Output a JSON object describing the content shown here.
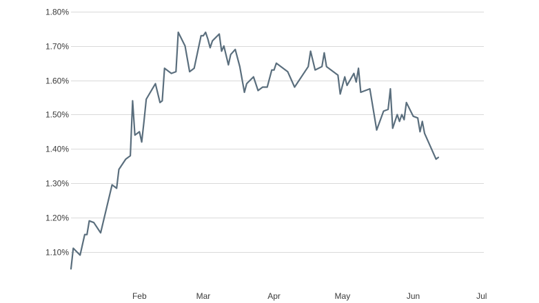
{
  "chart_data": {
    "type": "line",
    "title": "",
    "xlabel": "",
    "ylabel": "",
    "ylim": [
      1.03,
      1.8
    ],
    "y_ticks": [
      1.1,
      1.2,
      1.3,
      1.4,
      1.5,
      1.6,
      1.7,
      1.8
    ],
    "y_tick_labels": [
      "1.10%",
      "1.20%",
      "1.30%",
      "1.40%",
      "1.50%",
      "1.60%",
      "1.70%",
      "1.80%"
    ],
    "x_ticks": [
      {
        "label": "Feb",
        "x": 32
      },
      {
        "label": "Mar",
        "x": 60
      },
      {
        "label": "Apr",
        "x": 91
      },
      {
        "label": "May",
        "x": 121
      },
      {
        "label": "Jun",
        "x": 152
      },
      {
        "label": "Jul",
        "x": 182
      }
    ],
    "xlim": [
      2,
      183
    ],
    "x_unit": "day of year",
    "grid": "horizontal",
    "legend": "none",
    "colors": {
      "line": "#5a6e7d",
      "grid": "#d9d9d9",
      "text": "#3a3a3a"
    },
    "series": [
      {
        "values": [
          [
            2,
            1.05
          ],
          [
            3,
            1.11
          ],
          [
            6,
            1.09
          ],
          [
            8,
            1.15
          ],
          [
            9,
            1.15
          ],
          [
            10,
            1.19
          ],
          [
            12,
            1.185
          ],
          [
            15,
            1.155
          ],
          [
            20,
            1.295
          ],
          [
            22,
            1.285
          ],
          [
            23,
            1.34
          ],
          [
            26,
            1.37
          ],
          [
            28,
            1.38
          ],
          [
            29,
            1.54
          ],
          [
            30,
            1.44
          ],
          [
            32,
            1.45
          ],
          [
            33,
            1.42
          ],
          [
            34,
            1.48
          ],
          [
            35,
            1.545
          ],
          [
            39,
            1.59
          ],
          [
            41,
            1.535
          ],
          [
            42,
            1.54
          ],
          [
            43,
            1.635
          ],
          [
            46,
            1.62
          ],
          [
            48,
            1.625
          ],
          [
            49,
            1.74
          ],
          [
            52,
            1.7
          ],
          [
            54,
            1.625
          ],
          [
            56,
            1.635
          ],
          [
            59,
            1.73
          ],
          [
            60,
            1.73
          ],
          [
            61,
            1.74
          ],
          [
            62,
            1.72
          ],
          [
            63,
            1.695
          ],
          [
            64,
            1.715
          ],
          [
            67,
            1.735
          ],
          [
            68,
            1.685
          ],
          [
            69,
            1.7
          ],
          [
            71,
            1.645
          ],
          [
            72,
            1.675
          ],
          [
            74,
            1.69
          ],
          [
            76,
            1.64
          ],
          [
            78,
            1.565
          ],
          [
            79,
            1.59
          ],
          [
            82,
            1.61
          ],
          [
            84,
            1.57
          ],
          [
            86,
            1.58
          ],
          [
            88,
            1.58
          ],
          [
            90,
            1.63
          ],
          [
            91,
            1.63
          ],
          [
            92,
            1.65
          ],
          [
            97,
            1.625
          ],
          [
            100,
            1.58
          ],
          [
            106,
            1.64
          ],
          [
            107,
            1.685
          ],
          [
            109,
            1.63
          ],
          [
            112,
            1.64
          ],
          [
            113,
            1.68
          ],
          [
            114,
            1.64
          ],
          [
            119,
            1.615
          ],
          [
            120,
            1.56
          ],
          [
            122,
            1.61
          ],
          [
            123,
            1.585
          ],
          [
            126,
            1.62
          ],
          [
            127,
            1.595
          ],
          [
            128,
            1.635
          ],
          [
            129,
            1.565
          ],
          [
            133,
            1.575
          ],
          [
            136,
            1.455
          ],
          [
            139,
            1.51
          ],
          [
            141,
            1.515
          ],
          [
            142,
            1.575
          ],
          [
            143,
            1.46
          ],
          [
            145,
            1.5
          ],
          [
            146,
            1.48
          ],
          [
            147,
            1.5
          ],
          [
            148,
            1.485
          ],
          [
            149,
            1.535
          ],
          [
            152,
            1.495
          ],
          [
            154,
            1.49
          ],
          [
            155,
            1.45
          ],
          [
            156,
            1.48
          ],
          [
            157,
            1.445
          ],
          [
            162,
            1.37
          ],
          [
            163,
            1.375
          ]
        ]
      }
    ]
  }
}
